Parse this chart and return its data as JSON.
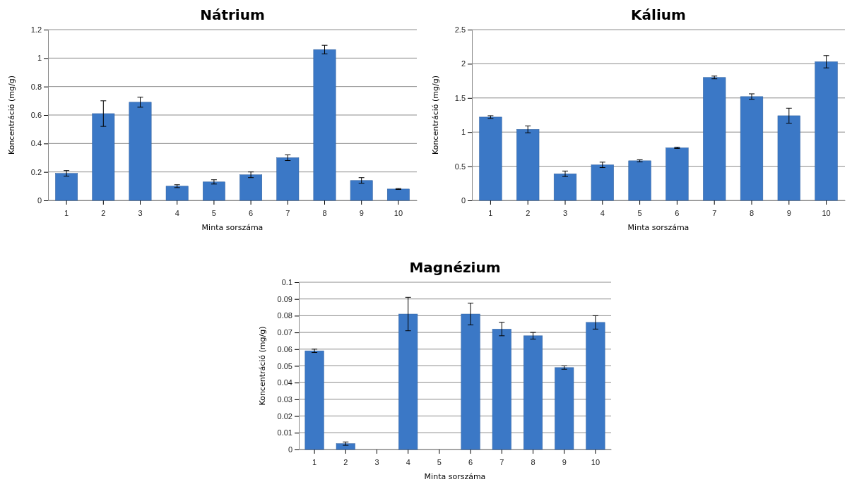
{
  "chart_data": [
    {
      "type": "bar",
      "title": "Nátrium",
      "xlabel": "Minta sorszáma",
      "ylabel": "Koncentráció (mg/g)",
      "categories": [
        "1",
        "2",
        "3",
        "4",
        "5",
        "6",
        "7",
        "8",
        "9",
        "10"
      ],
      "color": "#3b78c6",
      "values": [
        0.19,
        0.61,
        0.69,
        0.1,
        0.13,
        0.18,
        0.3,
        1.06,
        0.14,
        0.08
      ],
      "errors": [
        0.02,
        0.09,
        0.035,
        0.01,
        0.015,
        0.02,
        0.02,
        0.03,
        0.02,
        0.003
      ],
      "ylim": [
        0,
        1.2
      ],
      "yticks": [
        0,
        0.2,
        0.4,
        0.6,
        0.8,
        1,
        1.2
      ],
      "grid": "y"
    },
    {
      "type": "bar",
      "title": "Kálium",
      "xlabel": "Minta sorszáma",
      "ylabel": "Koncentráció (mg/g)",
      "categories": [
        "1",
        "2",
        "3",
        "4",
        "5",
        "6",
        "7",
        "8",
        "9",
        "10"
      ],
      "color": "#3b78c6",
      "values": [
        1.22,
        1.04,
        0.39,
        0.52,
        0.58,
        0.77,
        1.8,
        1.52,
        1.24,
        2.03
      ],
      "errors": [
        0.02,
        0.05,
        0.04,
        0.04,
        0.015,
        0.01,
        0.02,
        0.04,
        0.11,
        0.09
      ],
      "ylim": [
        0,
        2.5
      ],
      "yticks": [
        0,
        0.5,
        1,
        1.5,
        2,
        2.5
      ],
      "grid": "y"
    },
    {
      "type": "bar",
      "title": "Magnézium",
      "xlabel": "Minta sorszáma",
      "ylabel": "Koncentráció (mg/g)",
      "categories": [
        "1",
        "2",
        "3",
        "4",
        "5",
        "6",
        "7",
        "8",
        "9",
        "10"
      ],
      "color": "#3b78c6",
      "values": [
        0.059,
        0.0035,
        null,
        0.081,
        null,
        0.081,
        0.072,
        0.068,
        0.049,
        0.076
      ],
      "errors": [
        0.001,
        0.001,
        null,
        0.01,
        null,
        0.0065,
        0.004,
        0.002,
        0.001,
        0.004
      ],
      "ylim": [
        0,
        0.1
      ],
      "yticks": [
        0,
        0.01,
        0.02,
        0.03,
        0.04,
        0.05,
        0.06,
        0.07,
        0.08,
        0.09,
        0.1
      ],
      "grid": "y"
    }
  ]
}
